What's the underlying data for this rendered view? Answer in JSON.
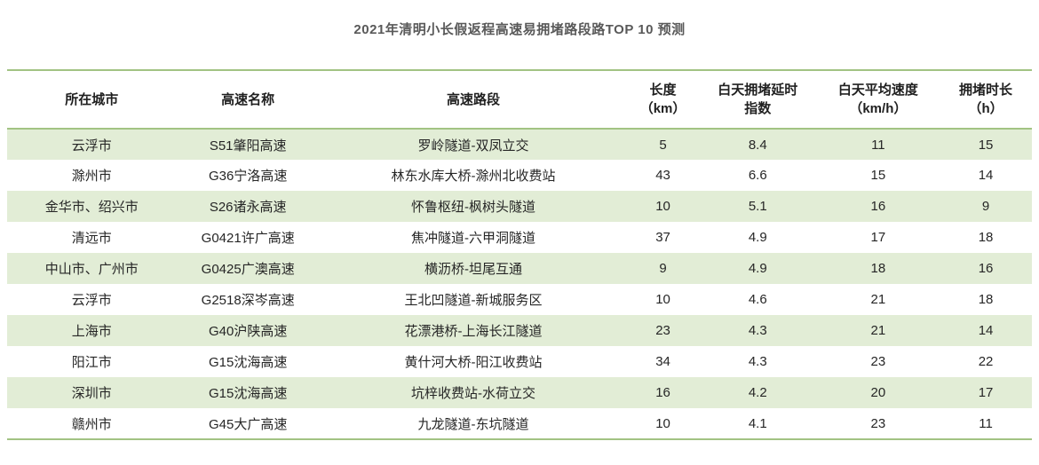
{
  "chart_data": {
    "type": "table",
    "title": "2021年清明小长假返程高速易拥堵路段路TOP 10 预测",
    "columns": [
      {
        "key": "city",
        "line1": "所在城市",
        "line2": ""
      },
      {
        "key": "highway-name",
        "line1": "高速名称",
        "line2": ""
      },
      {
        "key": "highway-section",
        "line1": "高速路段",
        "line2": ""
      },
      {
        "key": "length-km",
        "line1": "长度",
        "line2": "（km）"
      },
      {
        "key": "daytime-delay-index",
        "line1": "白天拥堵延时",
        "line2": "指数"
      },
      {
        "key": "daytime-avg-speed",
        "line1": "白天平均速度",
        "line2": "（km/h）"
      },
      {
        "key": "congestion-hours",
        "line1": "拥堵时长",
        "line2": "（h）"
      }
    ],
    "rows": [
      [
        "云浮市",
        "S51肇阳高速",
        "罗岭隧道-双凤立交",
        "5",
        "8.4",
        "11",
        "15"
      ],
      [
        "滁州市",
        "G36宁洛高速",
        "林东水库大桥-滁州北收费站",
        "43",
        "6.6",
        "15",
        "14"
      ],
      [
        "金华市、绍兴市",
        "S26诸永高速",
        "怀鲁枢纽-枫树头隧道",
        "10",
        "5.1",
        "16",
        "9"
      ],
      [
        "清远市",
        "G0421许广高速",
        "焦冲隧道-六甲洞隧道",
        "37",
        "4.9",
        "17",
        "18"
      ],
      [
        "中山市、广州市",
        "G0425广澳高速",
        "横沥桥-坦尾互通",
        "9",
        "4.9",
        "18",
        "16"
      ],
      [
        "云浮市",
        "G2518深岑高速",
        "王北凹隧道-新城服务区",
        "10",
        "4.6",
        "21",
        "18"
      ],
      [
        "上海市",
        "G40沪陕高速",
        "花漂港桥-上海长江隧道",
        "23",
        "4.3",
        "21",
        "14"
      ],
      [
        "阳江市",
        "G15沈海高速",
        "黄什河大桥-阳江收费站",
        "34",
        "4.3",
        "23",
        "22"
      ],
      [
        "深圳市",
        "G15沈海高速",
        "坑梓收费站-水荷立交",
        "16",
        "4.2",
        "20",
        "17"
      ],
      [
        "赣州市",
        "G45大广高速",
        "九龙隧道-东坑隧道",
        "10",
        "4.1",
        "23",
        "11"
      ]
    ]
  },
  "colors": {
    "accent_line": "#a2c383",
    "row_stripe": "#e2edd6",
    "title_text": "#595959",
    "header_text": "#1f1f1f",
    "body_text": "#262626",
    "background": "#ffffff"
  }
}
